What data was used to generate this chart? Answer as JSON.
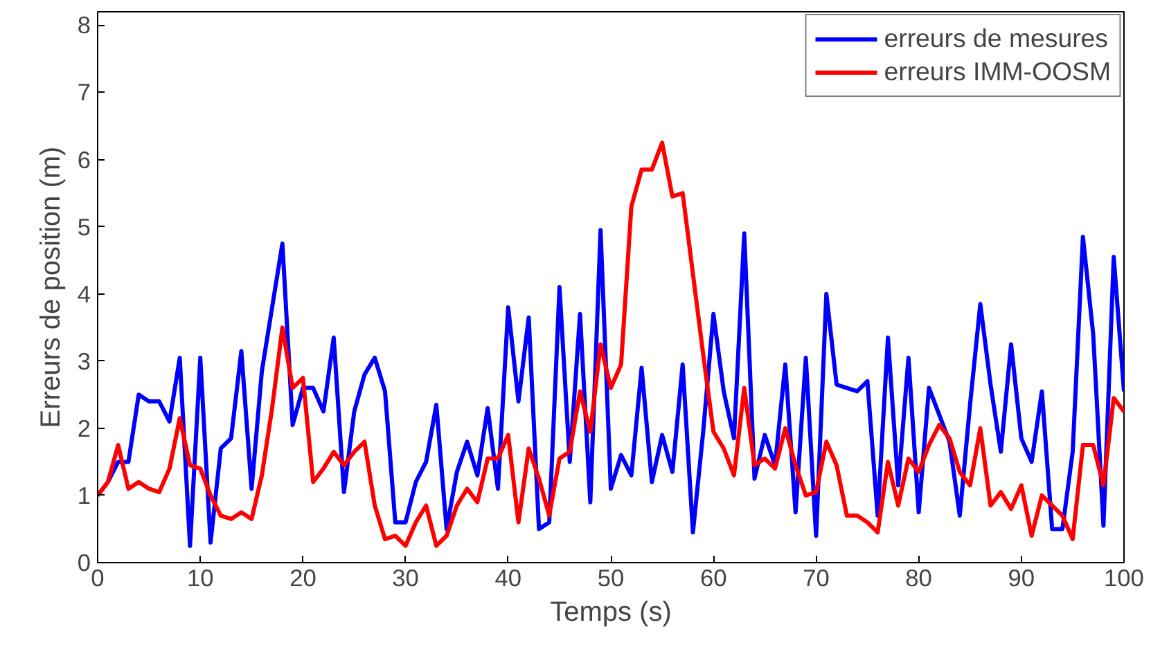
{
  "chart_data": {
    "type": "line",
    "xlabel": "Temps (s)",
    "ylabel": "Erreurs de position (m)",
    "x": [
      0,
      1,
      2,
      3,
      4,
      5,
      6,
      7,
      8,
      9,
      10,
      11,
      12,
      13,
      14,
      15,
      16,
      17,
      18,
      19,
      20,
      21,
      22,
      23,
      24,
      25,
      26,
      27,
      28,
      29,
      30,
      31,
      32,
      33,
      34,
      35,
      36,
      37,
      38,
      39,
      40,
      41,
      42,
      43,
      44,
      45,
      46,
      47,
      48,
      49,
      50,
      51,
      52,
      53,
      54,
      55,
      56,
      57,
      58,
      59,
      60,
      61,
      62,
      63,
      64,
      65,
      66,
      67,
      68,
      69,
      70,
      71,
      72,
      73,
      74,
      75,
      76,
      77,
      78,
      79,
      80,
      81,
      82,
      83,
      84,
      85,
      86,
      87,
      88,
      89,
      90,
      91,
      92,
      93,
      94,
      95,
      96,
      97,
      98,
      99,
      100
    ],
    "series": [
      {
        "name": "erreurs de mesures",
        "color": "#0000ff",
        "values": [
          1.0,
          1.2,
          1.5,
          1.5,
          2.5,
          2.4,
          2.4,
          2.1,
          3.05,
          0.25,
          3.05,
          0.3,
          1.7,
          1.85,
          3.15,
          1.1,
          2.85,
          3.8,
          4.75,
          2.05,
          2.6,
          2.6,
          2.25,
          3.35,
          1.05,
          2.25,
          2.8,
          3.05,
          2.55,
          0.6,
          0.6,
          1.2,
          1.5,
          2.35,
          0.5,
          1.35,
          1.8,
          1.3,
          2.3,
          1.1,
          3.8,
          2.4,
          3.65,
          0.5,
          0.6,
          4.1,
          1.5,
          3.7,
          0.9,
          4.95,
          1.1,
          1.6,
          1.3,
          2.9,
          1.2,
          1.9,
          1.35,
          2.95,
          0.45,
          1.95,
          3.7,
          2.55,
          1.85,
          4.9,
          1.25,
          1.9,
          1.45,
          2.95,
          0.75,
          3.05,
          0.4,
          4.0,
          2.65,
          2.6,
          2.55,
          2.7,
          0.7,
          3.35,
          1.15,
          3.05,
          0.75,
          2.6,
          2.2,
          1.8,
          0.7,
          2.35,
          3.85,
          2.65,
          1.65,
          3.25,
          1.85,
          1.5,
          2.55,
          0.5,
          0.5,
          1.65,
          4.85,
          3.4,
          0.55,
          4.55,
          2.55
        ]
      },
      {
        "name": "erreurs IMM-OOSM",
        "color": "#ff0000",
        "values": [
          1.0,
          1.2,
          1.75,
          1.1,
          1.2,
          1.1,
          1.05,
          1.4,
          2.15,
          1.45,
          1.4,
          1.0,
          0.7,
          0.65,
          0.75,
          0.65,
          1.3,
          2.3,
          3.5,
          2.6,
          2.75,
          1.2,
          1.4,
          1.65,
          1.45,
          1.65,
          1.8,
          0.85,
          0.35,
          0.4,
          0.25,
          0.6,
          0.85,
          0.25,
          0.4,
          0.85,
          1.1,
          0.9,
          1.55,
          1.55,
          1.9,
          0.6,
          1.7,
          1.25,
          0.7,
          1.55,
          1.65,
          2.55,
          1.95,
          3.25,
          2.6,
          2.95,
          5.3,
          5.85,
          5.85,
          6.25,
          5.45,
          5.5,
          4.3,
          3.1,
          1.95,
          1.7,
          1.3,
          2.6,
          1.45,
          1.55,
          1.4,
          2.0,
          1.45,
          1.0,
          1.05,
          1.8,
          1.45,
          0.7,
          0.7,
          0.6,
          0.45,
          1.5,
          0.85,
          1.55,
          1.35,
          1.75,
          2.05,
          1.85,
          1.35,
          1.15,
          2.0,
          0.85,
          1.05,
          0.8,
          1.15,
          0.4,
          1.0,
          0.85,
          0.7,
          0.35,
          1.75,
          1.75,
          1.15,
          2.45,
          2.25
        ]
      }
    ],
    "xlim": [
      0,
      100
    ],
    "ylim": [
      0,
      8.2
    ],
    "xticks": [
      0,
      10,
      20,
      30,
      40,
      50,
      60,
      70,
      80,
      90,
      100
    ],
    "yticks": [
      0,
      1,
      2,
      3,
      4,
      5,
      6,
      7,
      8
    ],
    "grid": false,
    "legend": "top right",
    "marker": "none",
    "line_style": "solid"
  }
}
